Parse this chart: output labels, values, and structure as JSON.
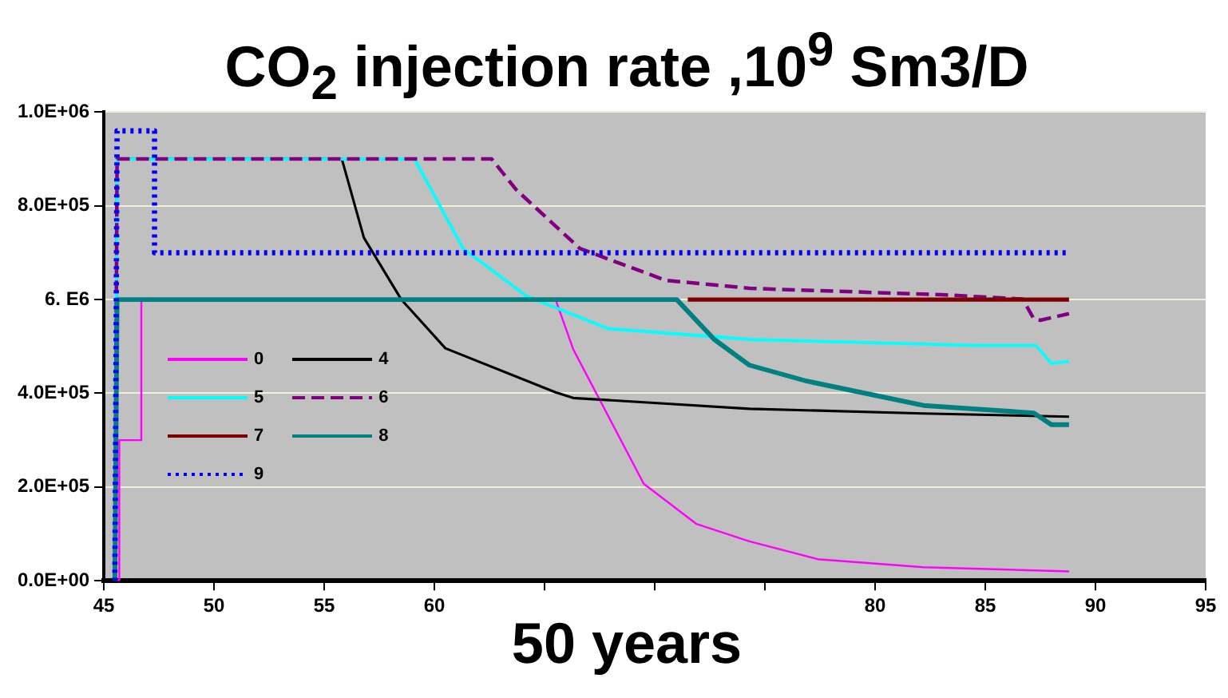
{
  "chart_data": {
    "type": "line",
    "title": "CO$_{2}$ injection rate ,10$^{9}$ Sm3/D",
    "xlabel": "50 years",
    "xlim": [
      45,
      95
    ],
    "xticks": [
      45,
      50,
      55,
      60,
      {
        "value": 65,
        "label": null
      },
      {
        "value": 70,
        "label": null
      },
      {
        "value": 75,
        "label": null
      },
      80,
      85,
      90,
      95
    ],
    "ylim": [
      0,
      1000000
    ],
    "yticks": [
      {
        "value": 0,
        "label": "0.0E+00"
      },
      {
        "value": 200000,
        "label": "2.0E+05"
      },
      {
        "value": 400000,
        "label": "4.0E+05"
      },
      {
        "value": 600000,
        "label": "6. E6"
      },
      {
        "value": 800000,
        "label": "8.0E+05"
      },
      {
        "value": 1000000,
        "label": "1.0E+06"
      }
    ],
    "grid": "y",
    "legend": "bottom left",
    "marker": "none",
    "series": [
      {
        "name": "0",
        "color": "#ff00ff",
        "line_style": "solid",
        "x": [
          45.5,
          45.7,
          45.7,
          46.7,
          46.7,
          65.5,
          66.3,
          69.5,
          71.9,
          74.3,
          77.4,
          82.2,
          88.8
        ],
        "values": [
          0,
          0,
          300000,
          300000,
          600000,
          600000,
          494000,
          207000,
          121000,
          84000,
          46000,
          29000,
          20000
        ]
      },
      {
        "name": "4",
        "color": "#000000",
        "line_style": "solid",
        "x": [
          45.5,
          45.6,
          55.8,
          56.8,
          58.5,
          60.5,
          65.5,
          66.3,
          74.3,
          82.2,
          88.8
        ],
        "values": [
          0,
          900000,
          900000,
          732000,
          600000,
          496000,
          402000,
          390000,
          367000,
          357000,
          350000
        ]
      },
      {
        "name": "5",
        "color": "#00ffff",
        "line_style": "solid",
        "x": [
          45.5,
          45.6,
          59.1,
          61.3,
          64.2,
          67.9,
          74.3,
          84.6,
          87.3,
          88.0,
          88.8
        ],
        "values": [
          0,
          900000,
          900000,
          709000,
          607000,
          538000,
          515000,
          502000,
          502000,
          464000,
          468000
        ]
      },
      {
        "name": "6",
        "color": "#800080",
        "line_style": "dashed",
        "x": [
          45.5,
          45.6,
          62.6,
          63.7,
          66.6,
          70.5,
          74.3,
          83.2,
          86.7,
          87.2,
          87.5,
          88.8
        ],
        "values": [
          0,
          900000,
          900000,
          835000,
          709000,
          641000,
          624000,
          610000,
          601000,
          559000,
          556000,
          570000
        ]
      },
      {
        "name": "7",
        "color": "#800000",
        "line_style": "solid",
        "x": [
          71.5,
          88.8
        ],
        "values": [
          600000,
          600000
        ]
      },
      {
        "name": "8",
        "color": "#008080",
        "line_style": "solid",
        "x": [
          45.5,
          45.6,
          71.0,
          72.7,
          74.3,
          76.9,
          82.2,
          87.2,
          88.0,
          88.8
        ],
        "values": [
          0,
          600000,
          600000,
          515000,
          460000,
          426000,
          374000,
          358000,
          333000,
          333000
        ]
      },
      {
        "name": "9",
        "color": "#0000ff",
        "line_style": "dotted",
        "x": [
          45.5,
          45.6,
          47.3,
          47.3,
          88.8
        ],
        "values": [
          0,
          960000,
          960000,
          700000,
          700000
        ]
      }
    ]
  }
}
